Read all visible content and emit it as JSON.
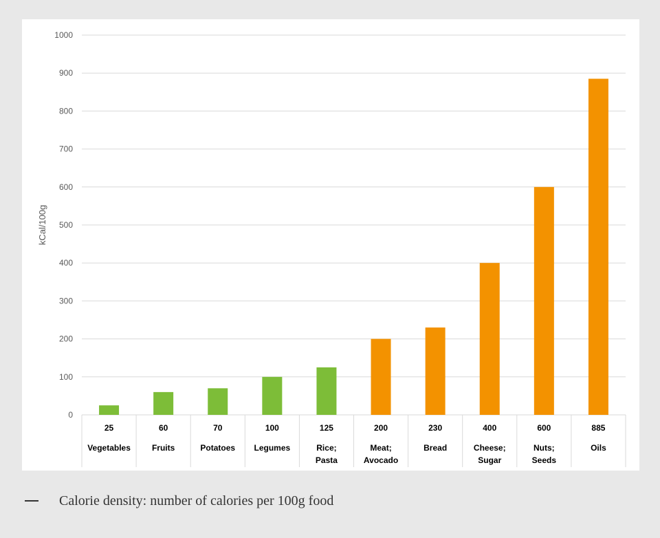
{
  "caption": {
    "text": "Calorie density: number of calories per 100g food"
  },
  "colors": {
    "green": "#7dbd38",
    "orange": "#f39200",
    "grid": "#d9d9d9",
    "axis_text": "#595959",
    "table_text": "#000000",
    "background": "#e8e8e8"
  },
  "chart_data": {
    "type": "bar",
    "title": "",
    "xlabel": "",
    "ylabel": "kCal/100g",
    "ylim": [
      0,
      1000
    ],
    "yticks": [
      0,
      100,
      200,
      300,
      400,
      500,
      600,
      700,
      800,
      900,
      1000
    ],
    "grid": true,
    "categories": [
      [
        "Vegetables"
      ],
      [
        "Fruits"
      ],
      [
        "Potatoes"
      ],
      [
        "Legumes"
      ],
      [
        "Rice;",
        "Pasta"
      ],
      [
        "Meat;",
        "Avocado"
      ],
      [
        "Bread"
      ],
      [
        "Cheese;",
        "Sugar"
      ],
      [
        "Nuts;",
        "Seeds"
      ],
      [
        "Oils"
      ]
    ],
    "values": [
      25,
      60,
      70,
      100,
      125,
      200,
      230,
      400,
      600,
      885
    ],
    "value_labels": [
      "25",
      "60",
      "70",
      "100",
      "125",
      "200",
      "230",
      "400",
      "600",
      "885"
    ],
    "bar_colors": [
      "green",
      "green",
      "green",
      "green",
      "green",
      "orange",
      "orange",
      "orange",
      "orange",
      "orange"
    ]
  }
}
